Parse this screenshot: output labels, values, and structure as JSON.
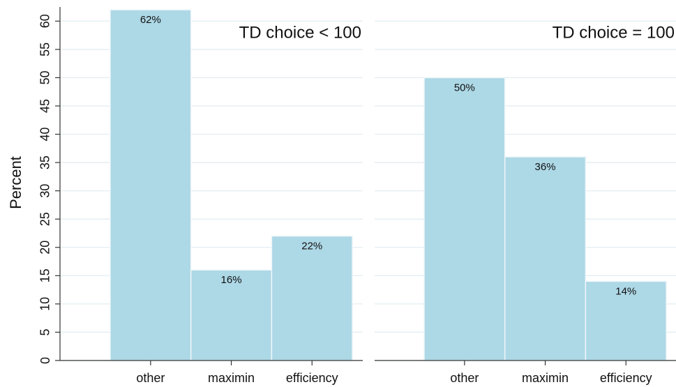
{
  "chart_data": [
    {
      "type": "bar",
      "title": "TD choice < 100",
      "y_label": "Percent",
      "categories": [
        "other",
        "maximin",
        "efficiency"
      ],
      "values": [
        62,
        16,
        22
      ],
      "value_labels": [
        "62%",
        "16%",
        "22%"
      ],
      "color": "#add8e6",
      "ylim": [
        0,
        62.5
      ],
      "yticks": [
        0,
        5,
        10,
        15,
        20,
        25,
        30,
        35,
        40,
        45,
        50,
        55,
        60
      ],
      "grid": true
    },
    {
      "type": "bar",
      "title": "TD choice = 100",
      "categories": [
        "other",
        "maximin",
        "efficiency"
      ],
      "values": [
        50,
        36,
        14
      ],
      "value_labels": [
        "50%",
        "36%",
        "14%"
      ],
      "color": "#add8e6",
      "ylim": [
        0,
        62.5
      ],
      "yticks": [
        0,
        5,
        10,
        15,
        20,
        25,
        30,
        35,
        40,
        45,
        50,
        55,
        60
      ],
      "grid": true
    }
  ]
}
